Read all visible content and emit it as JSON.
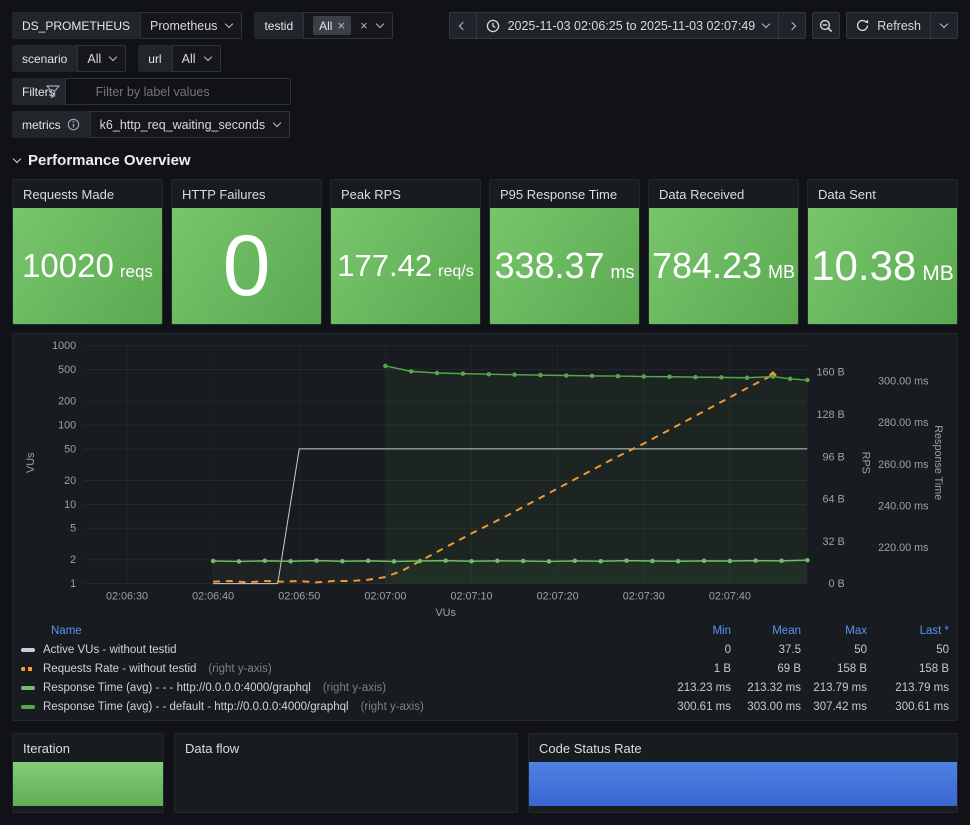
{
  "toolbar": {
    "datasource": {
      "label": "DS_PROMETHEUS",
      "value": "Prometheus"
    },
    "testid": {
      "label": "testid",
      "selected": "All"
    },
    "scenario": {
      "label": "scenario",
      "value": "All"
    },
    "url": {
      "label": "url",
      "value": "All"
    },
    "filters": {
      "label": "Filters",
      "placeholder": "Filter by label values"
    },
    "metrics": {
      "label": "metrics",
      "value": "k6_http_req_waiting_seconds"
    },
    "time_range": "2025-11-03 02:06:25 to 2025-11-03 02:07:49",
    "refresh_label": "Refresh"
  },
  "section_title": "Performance Overview",
  "stats": [
    {
      "title": "Requests Made",
      "value": "10020",
      "unit": "reqs"
    },
    {
      "title": "HTTP Failures",
      "value": "0",
      "unit": ""
    },
    {
      "title": "Peak RPS",
      "value": "177.42",
      "unit": "req/s"
    },
    {
      "title": "P95 Response Time",
      "value": "338.37",
      "unit": "ms"
    },
    {
      "title": "Data Received",
      "value": "784.23",
      "unit": "MB"
    },
    {
      "title": "Data Sent",
      "value": "10.38",
      "unit": "MB"
    }
  ],
  "chart_data": {
    "type": "line",
    "title": "",
    "x_axis": {
      "label": "VUs",
      "start_time": "02:06:25",
      "end_time": "02:07:49",
      "range_seconds": [
        0,
        84
      ],
      "ticks": [
        {
          "t": 5,
          "label": "02:06:30"
        },
        {
          "t": 15,
          "label": "02:06:40"
        },
        {
          "t": 25,
          "label": "02:06:50"
        },
        {
          "t": 35,
          "label": "02:07:00"
        },
        {
          "t": 45,
          "label": "02:07:10"
        },
        {
          "t": 55,
          "label": "02:07:20"
        },
        {
          "t": 65,
          "label": "02:07:30"
        },
        {
          "t": 75,
          "label": "02:07:40"
        }
      ]
    },
    "axes": {
      "vus": {
        "side": "left",
        "label": "VUs",
        "scale": "log",
        "min": 1,
        "max": 1120,
        "ticks": [
          {
            "v": 1000,
            "label": "1000"
          },
          {
            "v": 500,
            "label": "500"
          },
          {
            "v": 200,
            "label": "200"
          },
          {
            "v": 100,
            "label": "100"
          },
          {
            "v": 50,
            "label": "50"
          },
          {
            "v": 20,
            "label": "20"
          },
          {
            "v": 10,
            "label": "10"
          },
          {
            "v": 5,
            "label": "5"
          },
          {
            "v": 2,
            "label": "2"
          },
          {
            "v": 1,
            "label": "1"
          }
        ]
      },
      "rps": {
        "side": "right",
        "label": "RPS",
        "scale": "linear",
        "min": 0,
        "max": 183,
        "ticks": [
          {
            "v": 160,
            "label": "160 B"
          },
          {
            "v": 128,
            "label": "128 B"
          },
          {
            "v": 96,
            "label": "96 B"
          },
          {
            "v": 64,
            "label": "64 B"
          },
          {
            "v": 32,
            "label": "32 B"
          },
          {
            "v": 0,
            "label": "0 B"
          }
        ]
      },
      "rt": {
        "side": "right2",
        "label": "Response Time",
        "scale": "linear",
        "min": 202.5,
        "max": 319,
        "ticks": [
          {
            "v": 300,
            "label": "300.00 ms"
          },
          {
            "v": 280,
            "label": "280.00 ms"
          },
          {
            "v": 260,
            "label": "260.00 ms"
          },
          {
            "v": 240,
            "label": "240.00 ms"
          },
          {
            "v": 220,
            "label": "220.00 ms"
          }
        ]
      }
    },
    "series": [
      {
        "name": "Active VUs - without testid",
        "axis": "vus",
        "color": "#ccccdc",
        "width": 1,
        "points": [
          [
            15,
            1
          ],
          [
            22.5,
            1
          ],
          [
            25,
            50
          ],
          [
            84,
            50
          ]
        ]
      },
      {
        "name": "Requests Rate - without testid",
        "axis": "rps",
        "color": "#ff9830",
        "width": 2,
        "dash": "7,6",
        "end_marker": true,
        "points": [
          [
            15,
            1.5
          ],
          [
            17,
            2
          ],
          [
            19,
            1
          ],
          [
            21,
            2
          ],
          [
            23,
            1.5
          ],
          [
            25,
            2
          ],
          [
            27,
            1
          ],
          [
            29,
            2
          ],
          [
            31,
            2
          ],
          [
            33,
            3
          ],
          [
            35,
            5
          ],
          [
            37,
            10
          ],
          [
            41,
            24
          ],
          [
            45,
            38
          ],
          [
            49,
            51
          ],
          [
            53,
            65
          ],
          [
            57,
            79
          ],
          [
            61,
            93
          ],
          [
            65,
            106
          ],
          [
            69,
            120
          ],
          [
            73,
            134
          ],
          [
            77,
            148
          ],
          [
            80,
            158
          ]
        ]
      },
      {
        "name": "Response Time (avg) - - - http://0.0.0.0:4000/graphql",
        "axis": "rt",
        "color": "#73bf69",
        "width": 1.5,
        "markers": true,
        "fill_opacity": 0.06,
        "points": [
          [
            15,
            213.4
          ],
          [
            18,
            213.2
          ],
          [
            21,
            213.5
          ],
          [
            24,
            213.3
          ],
          [
            27,
            213.6
          ],
          [
            30,
            213.3
          ],
          [
            33,
            213.5
          ],
          [
            36,
            213.2
          ],
          [
            39,
            213.4
          ],
          [
            42,
            213.6
          ],
          [
            45,
            213.3
          ],
          [
            48,
            213.5
          ],
          [
            51,
            213.4
          ],
          [
            54,
            213.2
          ],
          [
            57,
            213.5
          ],
          [
            60,
            213.3
          ],
          [
            63,
            213.6
          ],
          [
            66,
            213.4
          ],
          [
            69,
            213.3
          ],
          [
            72,
            213.5
          ],
          [
            75,
            213.4
          ],
          [
            78,
            213.6
          ],
          [
            81,
            213.5
          ],
          [
            84,
            213.8
          ]
        ]
      },
      {
        "name": "Response Time (avg) - - default - http://0.0.0.0:4000/graphql",
        "axis": "rt",
        "color": "#56a64b",
        "width": 1.5,
        "markers": true,
        "fill_opacity": 0.08,
        "points": [
          [
            35,
            307.4
          ],
          [
            38,
            304.8
          ],
          [
            41,
            304.0
          ],
          [
            44,
            303.7
          ],
          [
            47,
            303.4
          ],
          [
            50,
            303.2
          ],
          [
            53,
            303.0
          ],
          [
            56,
            302.8
          ],
          [
            59,
            302.6
          ],
          [
            62,
            302.5
          ],
          [
            65,
            302.3
          ],
          [
            68,
            302.2
          ],
          [
            71,
            302.0
          ],
          [
            74,
            301.9
          ],
          [
            77,
            301.7
          ],
          [
            80,
            302.3
          ],
          [
            82,
            301.2
          ],
          [
            84,
            300.6
          ]
        ]
      }
    ]
  },
  "legend": {
    "columns": [
      "Name",
      "Min",
      "Mean",
      "Max",
      "Last *"
    ],
    "rows": [
      {
        "name": "Active VUs - without testid",
        "suffix": "",
        "color": "#ccccdc",
        "dashed": false,
        "min": "0",
        "mean": "37.5",
        "max": "50",
        "last": "50"
      },
      {
        "name": "Requests Rate - without testid",
        "suffix": "(right y-axis)",
        "color": "#ff9830",
        "dashed": true,
        "min": "1 B",
        "mean": "69 B",
        "max": "158 B",
        "last": "158 B"
      },
      {
        "name": "Response Time (avg) - - - http://0.0.0.0:4000/graphql",
        "suffix": "(right y-axis)",
        "color": "#73bf69",
        "dashed": false,
        "min": "213.23 ms",
        "mean": "213.32 ms",
        "max": "213.79 ms",
        "last": "213.79 ms"
      },
      {
        "name": "Response Time (avg) - - default - http://0.0.0.0:4000/graphql",
        "suffix": "(right y-axis)",
        "color": "#56a64b",
        "dashed": false,
        "min": "300.61 ms",
        "mean": "303.00 ms",
        "max": "307.42 ms",
        "last": "300.61 ms"
      }
    ]
  },
  "bottom_panels": {
    "iteration": {
      "title": "Iteration",
      "bar_color": "linear-gradient(180deg,#86cc7a,#5fae54)"
    },
    "data_flow": {
      "title": "Data flow"
    },
    "code_status": {
      "title": "Code Status Rate",
      "bar_color": "linear-gradient(180deg,#4e82e4,#3a66d1)"
    }
  },
  "colors": {
    "green": "#73bf69",
    "orange": "#ff9830",
    "blue": "#5794f2"
  }
}
